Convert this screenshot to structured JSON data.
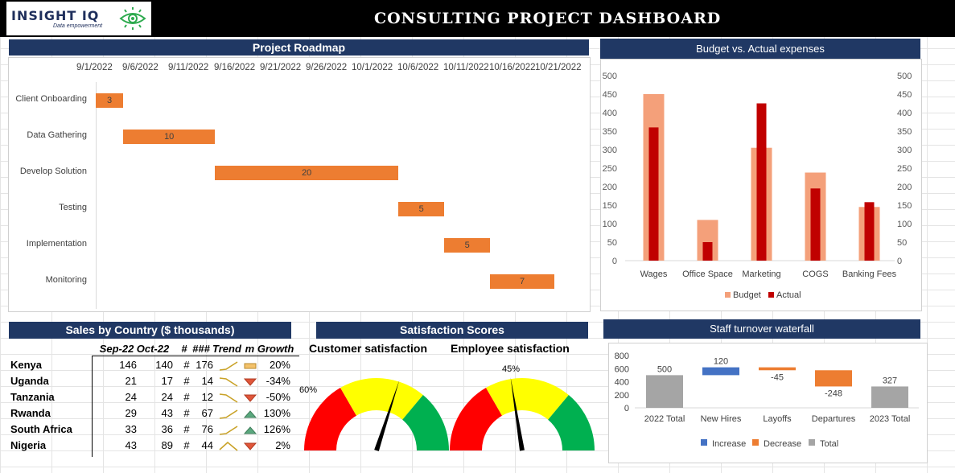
{
  "header": {
    "logo_text": "INSIGHT IQ",
    "logo_subtext": "Data empowerment",
    "title": "CONSULTING PROJECT DASHBOARD"
  },
  "roadmap": {
    "title": "Project Roadmap",
    "date_ticks": [
      "9/1/2022",
      "9/6/2022",
      "9/11/2022",
      "9/16/2022",
      "9/21/2022",
      "9/26/2022",
      "10/1/2022",
      "10/6/2022",
      "10/11/2022",
      "10/16/2022",
      "10/21/2022"
    ],
    "tasks": [
      {
        "name": "Client Onboarding",
        "start": "9/1/2022",
        "duration": 3,
        "label": "3"
      },
      {
        "name": "Data Gathering",
        "start": "9/4/2022",
        "duration": 10,
        "label": "10"
      },
      {
        "name": "Develop Solution",
        "start": "9/14/2022",
        "duration": 20,
        "label": "20"
      },
      {
        "name": "Testing",
        "start": "10/4/2022",
        "duration": 5,
        "label": "5"
      },
      {
        "name": "Implementation",
        "start": "10/9/2022",
        "duration": 5,
        "label": "5"
      },
      {
        "name": "Monitoring",
        "start": "10/14/2022",
        "duration": 7,
        "label": "7"
      }
    ],
    "bar_color": "#ed7d31"
  },
  "chart_data": [
    {
      "type": "gantt",
      "title": "Project Roadmap",
      "categories": [
        "Client Onboarding",
        "Data Gathering",
        "Develop Solution",
        "Testing",
        "Implementation",
        "Monitoring"
      ],
      "durations": [
        3,
        10,
        20,
        5,
        5,
        7
      ]
    },
    {
      "type": "bar",
      "title": "Budget vs. Actual expenses",
      "categories": [
        "Wages",
        "Office Space",
        "Marketing",
        "COGS",
        "Banking Fees"
      ],
      "series": [
        {
          "name": "Budget",
          "values": [
            450,
            110,
            305,
            238,
            145
          ],
          "color": "#f4a07a"
        },
        {
          "name": "Actual",
          "values": [
            360,
            50,
            425,
            195,
            158
          ],
          "color": "#c00000"
        }
      ],
      "ylim": [
        0,
        500
      ],
      "yticks": [
        "500",
        "450",
        "400",
        "350",
        "300",
        "250",
        "200",
        "150",
        "100",
        "50",
        "0"
      ],
      "legend": "bottom"
    },
    {
      "type": "waterfall",
      "title": "Staff turnover waterfall",
      "categories": [
        "2022 Total",
        "New Hires",
        "Layoffs",
        "Departures",
        "2023 Total"
      ],
      "values": [
        500,
        120,
        -45,
        -248,
        327
      ],
      "labels": [
        "500",
        "120",
        "-45",
        "-248",
        "327"
      ],
      "kinds": [
        "total",
        "increase",
        "decrease",
        "decrease",
        "total"
      ],
      "ylim": [
        0,
        800
      ],
      "yticks": [
        "800",
        "600",
        "400",
        "200",
        "0"
      ],
      "legend": [
        "Increase",
        "Decrease",
        "Total"
      ],
      "colors": {
        "increase": "#4472c4",
        "decrease": "#ed7d31",
        "total": "#a5a5a5"
      }
    },
    {
      "type": "gauge",
      "title": "Customer satisfaction",
      "value": 60,
      "label": "60%"
    },
    {
      "type": "gauge",
      "title": "Employee satisfaction",
      "value": 45,
      "label": "45%"
    }
  ],
  "budget": {
    "title": "Budget vs. Actual expenses"
  },
  "sales": {
    "title": "Sales by Country ($ thousands)",
    "headers": [
      "Sep-22",
      "Oct-22",
      "#",
      "###",
      "Trend",
      "m Growth"
    ],
    "rows": [
      {
        "country": "Kenya",
        "sep": "146",
        "oct": "140",
        "hash": "#",
        "nov": "176",
        "trend": "up",
        "growth": "20%",
        "dir": "flat"
      },
      {
        "country": "Uganda",
        "sep": "21",
        "oct": "17",
        "hash": "#",
        "nov": "14",
        "trend": "down",
        "growth": "-34%",
        "dir": "down"
      },
      {
        "country": "Tanzania",
        "sep": "24",
        "oct": "24",
        "hash": "#",
        "nov": "12",
        "trend": "down",
        "growth": "-50%",
        "dir": "down"
      },
      {
        "country": "Rwanda",
        "sep": "29",
        "oct": "43",
        "hash": "#",
        "nov": "67",
        "trend": "up",
        "growth": "130%",
        "dir": "up"
      },
      {
        "country": "South Africa",
        "sep": "33",
        "oct": "36",
        "hash": "#",
        "nov": "76",
        "trend": "up",
        "growth": "126%",
        "dir": "up"
      },
      {
        "country": "Nigeria",
        "sep": "43",
        "oct": "89",
        "hash": "#",
        "nov": "44",
        "trend": "peak",
        "growth": "2%",
        "dir": "down"
      }
    ]
  },
  "satisfaction": {
    "title": "Satisfaction Scores",
    "customer_title": "Customer satisfaction",
    "employee_title": "Employee satisfaction"
  },
  "turnover": {
    "title": "Staff turnover waterfall"
  }
}
